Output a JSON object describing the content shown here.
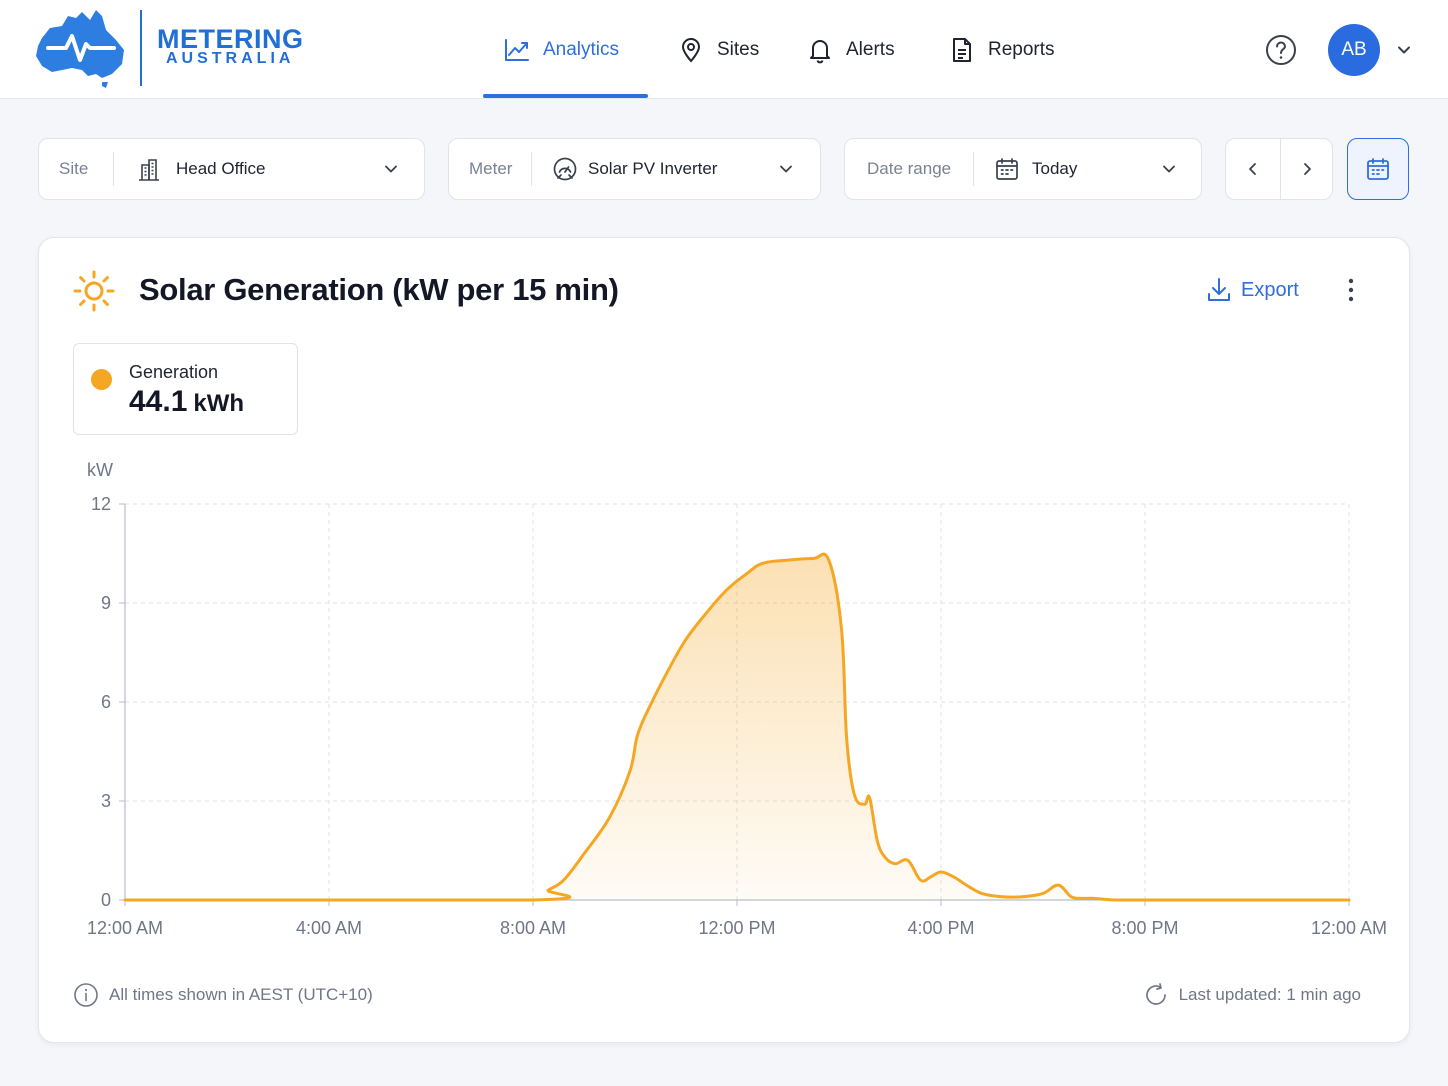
{
  "brand": {
    "name_line1": "METERING",
    "name_line2": "AUSTRALIA"
  },
  "nav": {
    "items": [
      {
        "label": "Analytics",
        "icon": "trend-chart-icon",
        "active": true
      },
      {
        "label": "Sites",
        "icon": "map-pin-icon",
        "active": false
      },
      {
        "label": "Alerts",
        "icon": "bell-icon",
        "active": false
      },
      {
        "label": "Reports",
        "icon": "document-icon",
        "active": false
      }
    ]
  },
  "user": {
    "initials": "AB"
  },
  "filters": {
    "site": {
      "label": "Site",
      "value": "Head Office",
      "icon": "building-icon"
    },
    "meter": {
      "label": "Meter",
      "value": "Solar PV Inverter",
      "icon": "meter-gauge-icon"
    },
    "date_range": {
      "label": "Date range",
      "value": "Today",
      "icon": "calendar-icon"
    }
  },
  "card": {
    "title": "Solar Generation (kW per 15 min)",
    "export_label": "Export",
    "legend": {
      "name": "Generation",
      "value": "44.1",
      "unit": "kWh"
    },
    "footer_note": "All times shown in AEST (UTC+10)",
    "last_updated": "Last updated: 1 min ago"
  },
  "colors": {
    "accent": "#2e6fdc",
    "series": "#f5a623"
  },
  "chart_data": {
    "type": "area",
    "ylabel": "kW",
    "ylim": [
      0,
      12
    ],
    "yticks": [
      0,
      3,
      6,
      9,
      12
    ],
    "xlim": [
      0,
      24
    ],
    "xticks": [
      {
        "value": 0,
        "label": "12:00 AM"
      },
      {
        "value": 4,
        "label": "4:00 AM"
      },
      {
        "value": 8,
        "label": "8:00 AM"
      },
      {
        "value": 12,
        "label": "12:00 PM"
      },
      {
        "value": 16,
        "label": "4:00 PM"
      },
      {
        "value": 20,
        "label": "8:00 PM"
      },
      {
        "value": 24,
        "label": "12:00 AM"
      }
    ],
    "grid": true,
    "series": [
      {
        "name": "Generation",
        "color": "#f5a623",
        "x": [
          0,
          8.0,
          8.3,
          8.6,
          9.0,
          9.5,
          9.9,
          10.05,
          10.3,
          10.7,
          11.0,
          11.4,
          11.8,
          12.2,
          12.5,
          13.0,
          13.5,
          13.8,
          14.05,
          14.15,
          14.3,
          14.5,
          14.6,
          14.75,
          14.9,
          15.1,
          15.35,
          15.6,
          15.8,
          16.0,
          16.25,
          16.5,
          16.8,
          17.2,
          17.6,
          18.0,
          18.3,
          18.55,
          18.75,
          19.0,
          19.4,
          20.0,
          24.0
        ],
        "y": [
          0,
          0,
          0.3,
          0.6,
          1.4,
          2.5,
          3.9,
          5.0,
          5.9,
          7.1,
          7.9,
          8.7,
          9.4,
          9.9,
          10.2,
          10.3,
          10.35,
          10.3,
          8.2,
          4.9,
          3.2,
          2.9,
          3.1,
          1.8,
          1.3,
          1.1,
          1.2,
          0.6,
          0.7,
          0.85,
          0.7,
          0.45,
          0.2,
          0.1,
          0.1,
          0.2,
          0.45,
          0.1,
          0.05,
          0.05,
          0.0,
          0.0,
          0.0
        ]
      }
    ]
  }
}
